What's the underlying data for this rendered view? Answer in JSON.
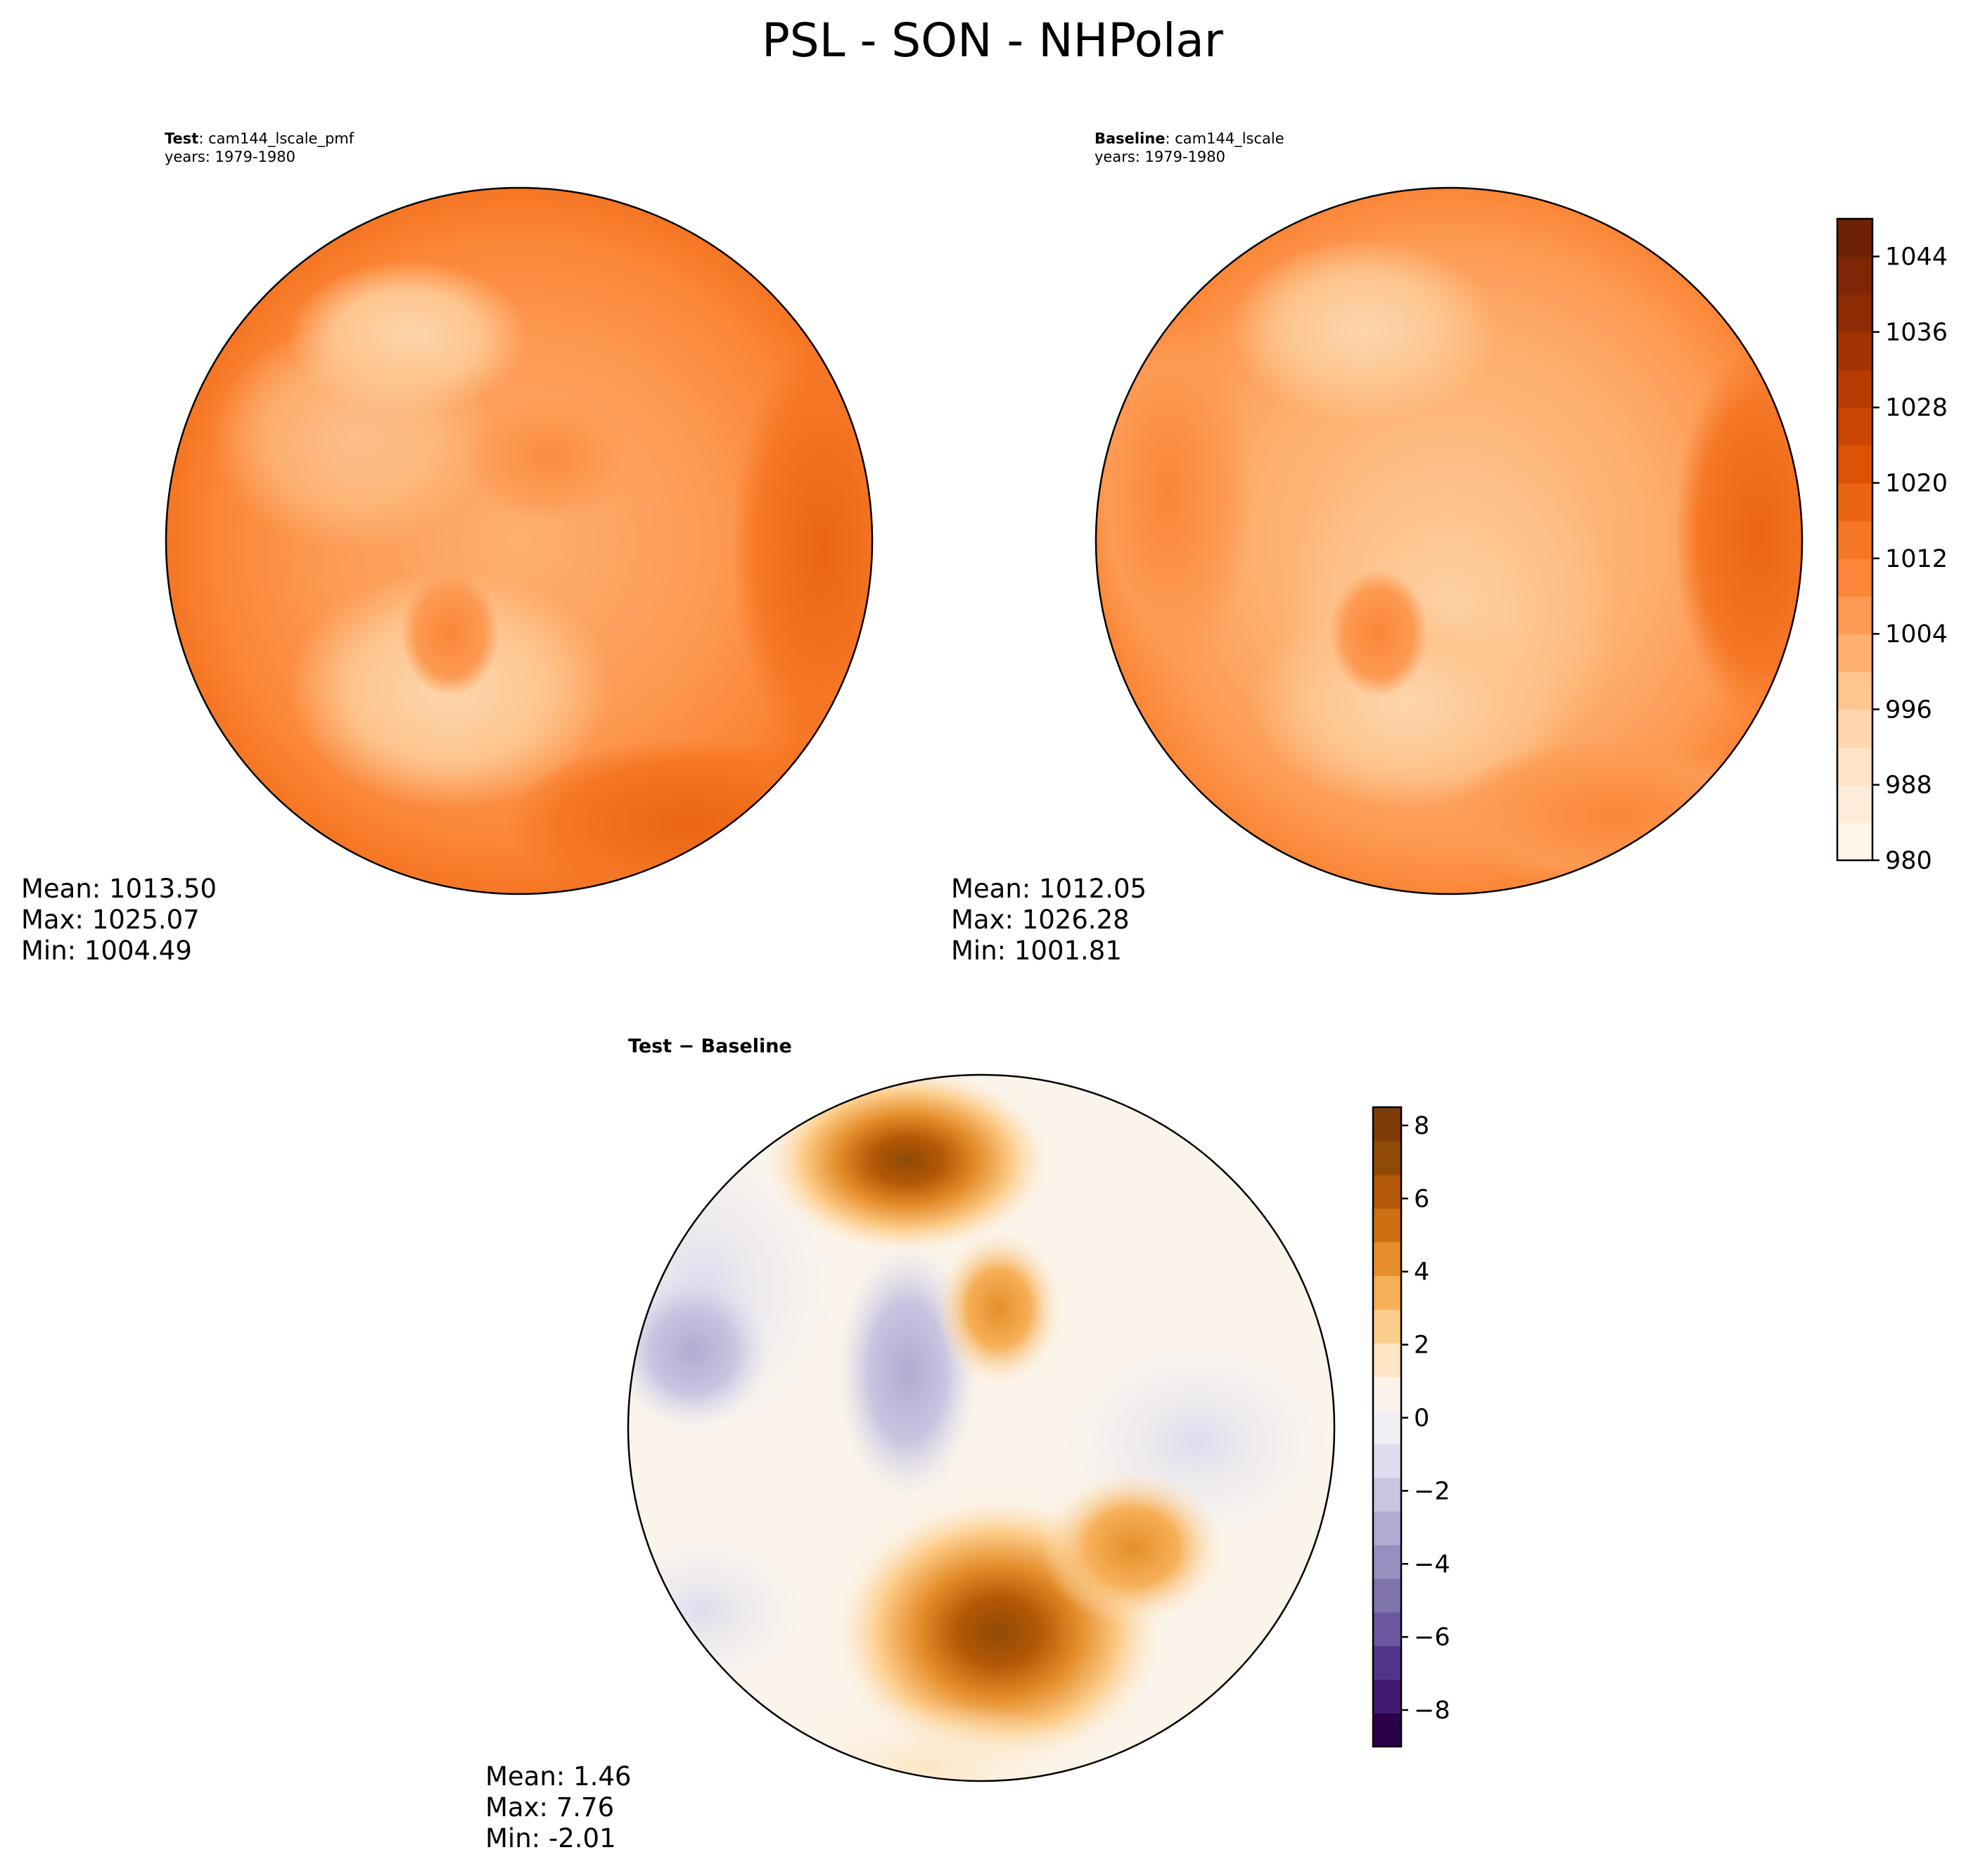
{
  "figure": {
    "title": "PSL - SON - NHPolar"
  },
  "chart_data": [
    {
      "type": "heatmap",
      "projection": "north-polar-stereographic",
      "label_bold": "Test",
      "label_text": ": cam144_lscale_pmf",
      "subtitle": "years: 1979-1980",
      "colormap": "Oranges",
      "value_range": [
        980,
        1048
      ],
      "levels_step": 4,
      "stats": {
        "mean": "Mean: 1013.50",
        "max": "Max: 1025.07",
        "min": "Min: 1004.49"
      }
    },
    {
      "type": "heatmap",
      "projection": "north-polar-stereographic",
      "label_bold": "Baseline",
      "label_text": ": cam144_lscale",
      "subtitle": "years: 1979-1980",
      "colormap": "Oranges",
      "value_range": [
        980,
        1048
      ],
      "levels_step": 4,
      "stats": {
        "mean": "Mean: 1012.05",
        "max": "Max: 1026.28",
        "min": "Min: 1001.81"
      }
    },
    {
      "type": "heatmap",
      "projection": "north-polar-stereographic",
      "title": "Test − Baseline",
      "colormap": "PuOr_r",
      "value_range": [
        -9,
        8.5
      ],
      "stats": {
        "mean": "Mean:  1.46",
        "max": "Max:  7.76",
        "min": "Min: -2.01"
      }
    }
  ],
  "colorbars": [
    {
      "name": "main-colorbar",
      "range": [
        980,
        1048
      ],
      "ticks": [
        980,
        988,
        996,
        1004,
        1012,
        1020,
        1028,
        1036,
        1044
      ],
      "tick_labels": [
        "980",
        "988",
        "996",
        "1004",
        "1012",
        "1020",
        "1028",
        "1036",
        "1044"
      ],
      "colors": [
        "#fff5eb",
        "#feebd8",
        "#fee3c6",
        "#fdd6ad",
        "#fdc58f",
        "#fdb06f",
        "#fd9a53",
        "#fc8637",
        "#f57624",
        "#ea6512",
        "#dd5306",
        "#cb4602",
        "#b63b03",
        "#a33303",
        "#8f2b04",
        "#7f2704",
        "#6d2104"
      ]
    },
    {
      "name": "diff-colorbar",
      "range": [
        -9,
        8.5
      ],
      "ticks": [
        -8,
        -6,
        -4,
        -2,
        0,
        2,
        4,
        6,
        8
      ],
      "tick_labels": [
        "−8",
        "−6",
        "−4",
        "−2",
        "0",
        "2",
        "4",
        "6",
        "8"
      ],
      "colors": [
        "#2d004b",
        "#3f1a6e",
        "#52348a",
        "#6a579f",
        "#8073ac",
        "#978fc0",
        "#b2abd2",
        "#c9c4e0",
        "#dedcee",
        "#f0eff6",
        "#fbf4ea",
        "#fde5c3",
        "#fdcd8b",
        "#f6b058",
        "#e58e2b",
        "#ce6f12",
        "#b35806",
        "#8f4a07",
        "#7f3b08"
      ]
    }
  ]
}
